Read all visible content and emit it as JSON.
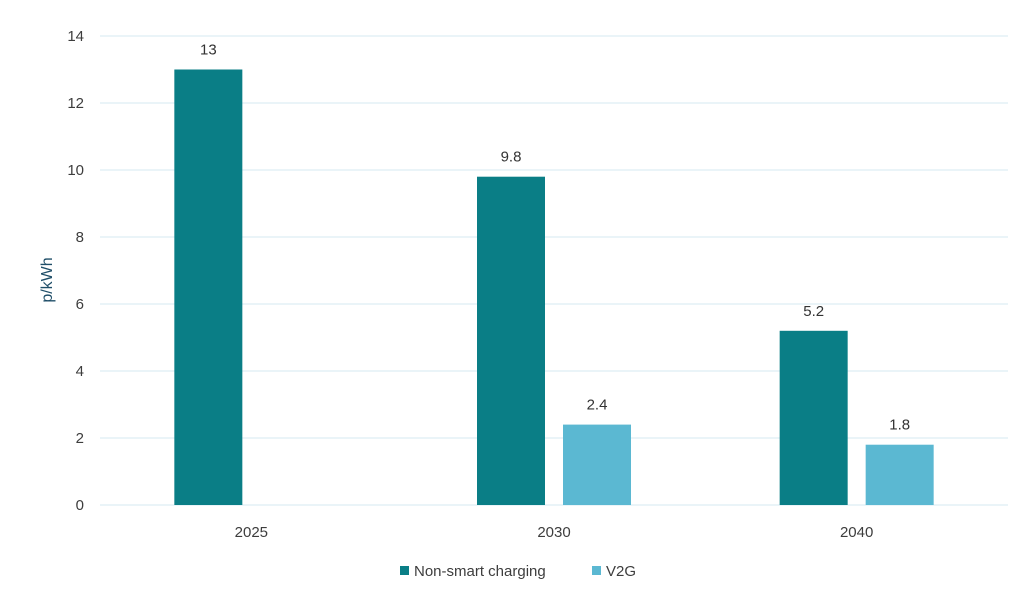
{
  "chart_data": {
    "type": "bar",
    "categories": [
      "2025",
      "2030",
      "2040"
    ],
    "series": [
      {
        "name": "Non-smart charging",
        "color": "#0a7e86",
        "values": [
          13,
          9.8,
          5.2
        ]
      },
      {
        "name": "V2G",
        "color": "#5bb8d2",
        "values": [
          null,
          2.4,
          1.8
        ]
      }
    ],
    "data_labels": [
      [
        "13",
        "9.8",
        "5.2"
      ],
      [
        null,
        "2.4",
        "1.8"
      ]
    ],
    "title": "",
    "xlabel": "",
    "ylabel": "p/kWh",
    "ylim": [
      0,
      14
    ],
    "yticks": [
      0,
      2,
      4,
      6,
      8,
      10,
      12,
      14
    ],
    "grid": true,
    "legend_position": "bottom"
  }
}
